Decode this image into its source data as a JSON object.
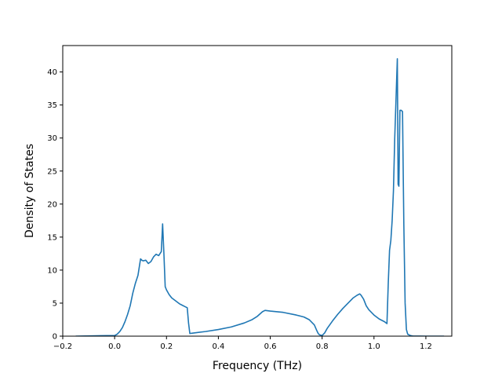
{
  "chart_data": {
    "type": "line",
    "xlabel": "Frequency (THz)",
    "ylabel": "Density of States",
    "xlim": [
      -0.2,
      1.3
    ],
    "ylim": [
      0,
      44
    ],
    "xticks": [
      "−0.2",
      "0.0",
      "0.2",
      "0.4",
      "0.6",
      "0.8",
      "1.0",
      "1.2"
    ],
    "xtick_values": [
      -0.2,
      0.0,
      0.2,
      0.4,
      0.6,
      0.8,
      1.0,
      1.2
    ],
    "yticks": [
      "0",
      "5",
      "10",
      "15",
      "20",
      "25",
      "30",
      "35",
      "40"
    ],
    "ytick_values": [
      0,
      5,
      10,
      15,
      20,
      25,
      30,
      35,
      40
    ],
    "grid": false,
    "series": [
      {
        "color": "#1f77b4",
        "x": [
          -0.15,
          0.0,
          0.01,
          0.02,
          0.03,
          0.04,
          0.05,
          0.06,
          0.07,
          0.08,
          0.09,
          0.1,
          0.105,
          0.11,
          0.12,
          0.13,
          0.14,
          0.15,
          0.16,
          0.17,
          0.18,
          0.185,
          0.19,
          0.195,
          0.2,
          0.21,
          0.22,
          0.23,
          0.24,
          0.25,
          0.26,
          0.27,
          0.28,
          0.285,
          0.29,
          0.3,
          0.35,
          0.4,
          0.45,
          0.5,
          0.53,
          0.55,
          0.57,
          0.58,
          0.6,
          0.65,
          0.7,
          0.73,
          0.75,
          0.77,
          0.78,
          0.785,
          0.79,
          0.8,
          0.81,
          0.82,
          0.84,
          0.86,
          0.88,
          0.9,
          0.92,
          0.935,
          0.945,
          0.95,
          0.96,
          0.97,
          0.98,
          1.0,
          1.02,
          1.04,
          1.05,
          1.055,
          1.06,
          1.065,
          1.07,
          1.075,
          1.08,
          1.085,
          1.09,
          1.093,
          1.096,
          1.1,
          1.105,
          1.11,
          1.115,
          1.12,
          1.125,
          1.13,
          1.14,
          1.145,
          1.15,
          1.2,
          1.27
        ],
        "y": [
          0,
          0.1,
          0.3,
          0.7,
          1.3,
          2.2,
          3.3,
          4.6,
          6.5,
          8.0,
          9.2,
          11.7,
          11.5,
          11.4,
          11.5,
          11.0,
          11.3,
          12.0,
          12.4,
          12.2,
          12.8,
          17.0,
          12.5,
          7.5,
          7.0,
          6.3,
          5.8,
          5.5,
          5.2,
          4.9,
          4.7,
          4.5,
          4.3,
          2.0,
          0.4,
          0.45,
          0.7,
          1.0,
          1.4,
          2.0,
          2.5,
          3.0,
          3.7,
          3.9,
          3.8,
          3.6,
          3.2,
          2.9,
          2.5,
          1.7,
          0.8,
          0.4,
          0.2,
          0.1,
          0.5,
          1.2,
          2.3,
          3.3,
          4.2,
          5.0,
          5.8,
          6.2,
          6.4,
          6.2,
          5.6,
          4.6,
          4.0,
          3.2,
          2.6,
          2.2,
          1.9,
          8.0,
          13.0,
          14.5,
          17.5,
          22.0,
          30.0,
          36.0,
          42.0,
          23.0,
          22.7,
          34.2,
          34.2,
          34.0,
          17.0,
          5.0,
          1.0,
          0.3,
          0.1,
          0.05,
          0.02,
          0,
          0
        ]
      }
    ]
  }
}
